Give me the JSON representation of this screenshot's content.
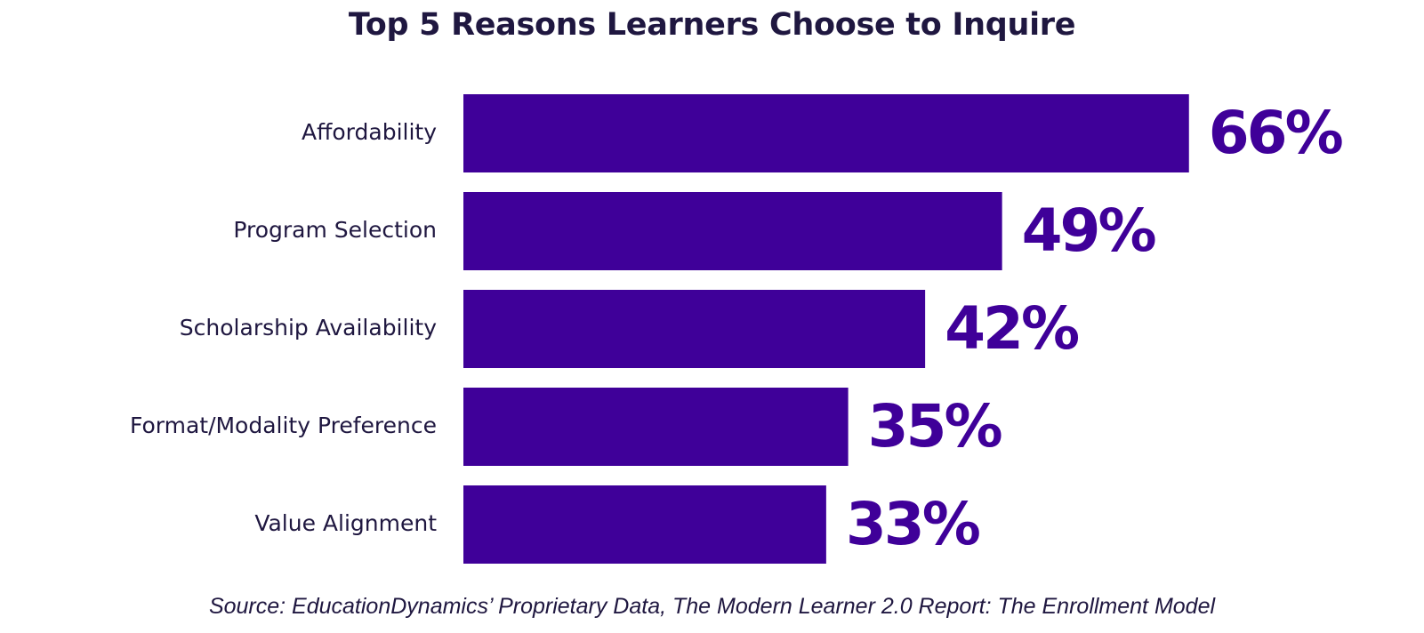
{
  "colors": {
    "bar": "#3f0099",
    "value_text": "#3f0099",
    "label_text": "#1f1740",
    "title_text": "#1f1740"
  },
  "chart_data": {
    "type": "bar",
    "orientation": "horizontal",
    "title": "Top 5 Reasons Learners Choose to Inquire",
    "categories": [
      "Affordability",
      "Program Selection",
      "Scholarship Availability",
      "Format/Modality Preference",
      "Value Alignment"
    ],
    "values": [
      66,
      49,
      42,
      35,
      33
    ],
    "value_labels": [
      "66%",
      "49%",
      "42%",
      "35%",
      "33%"
    ],
    "unit": "%",
    "grid": false,
    "legend": "none"
  },
  "footer": {
    "source": "Source: EducationDynamics’ Proprietary Data, The Modern Learner 2.0 Report: The Enrollment Model"
  }
}
